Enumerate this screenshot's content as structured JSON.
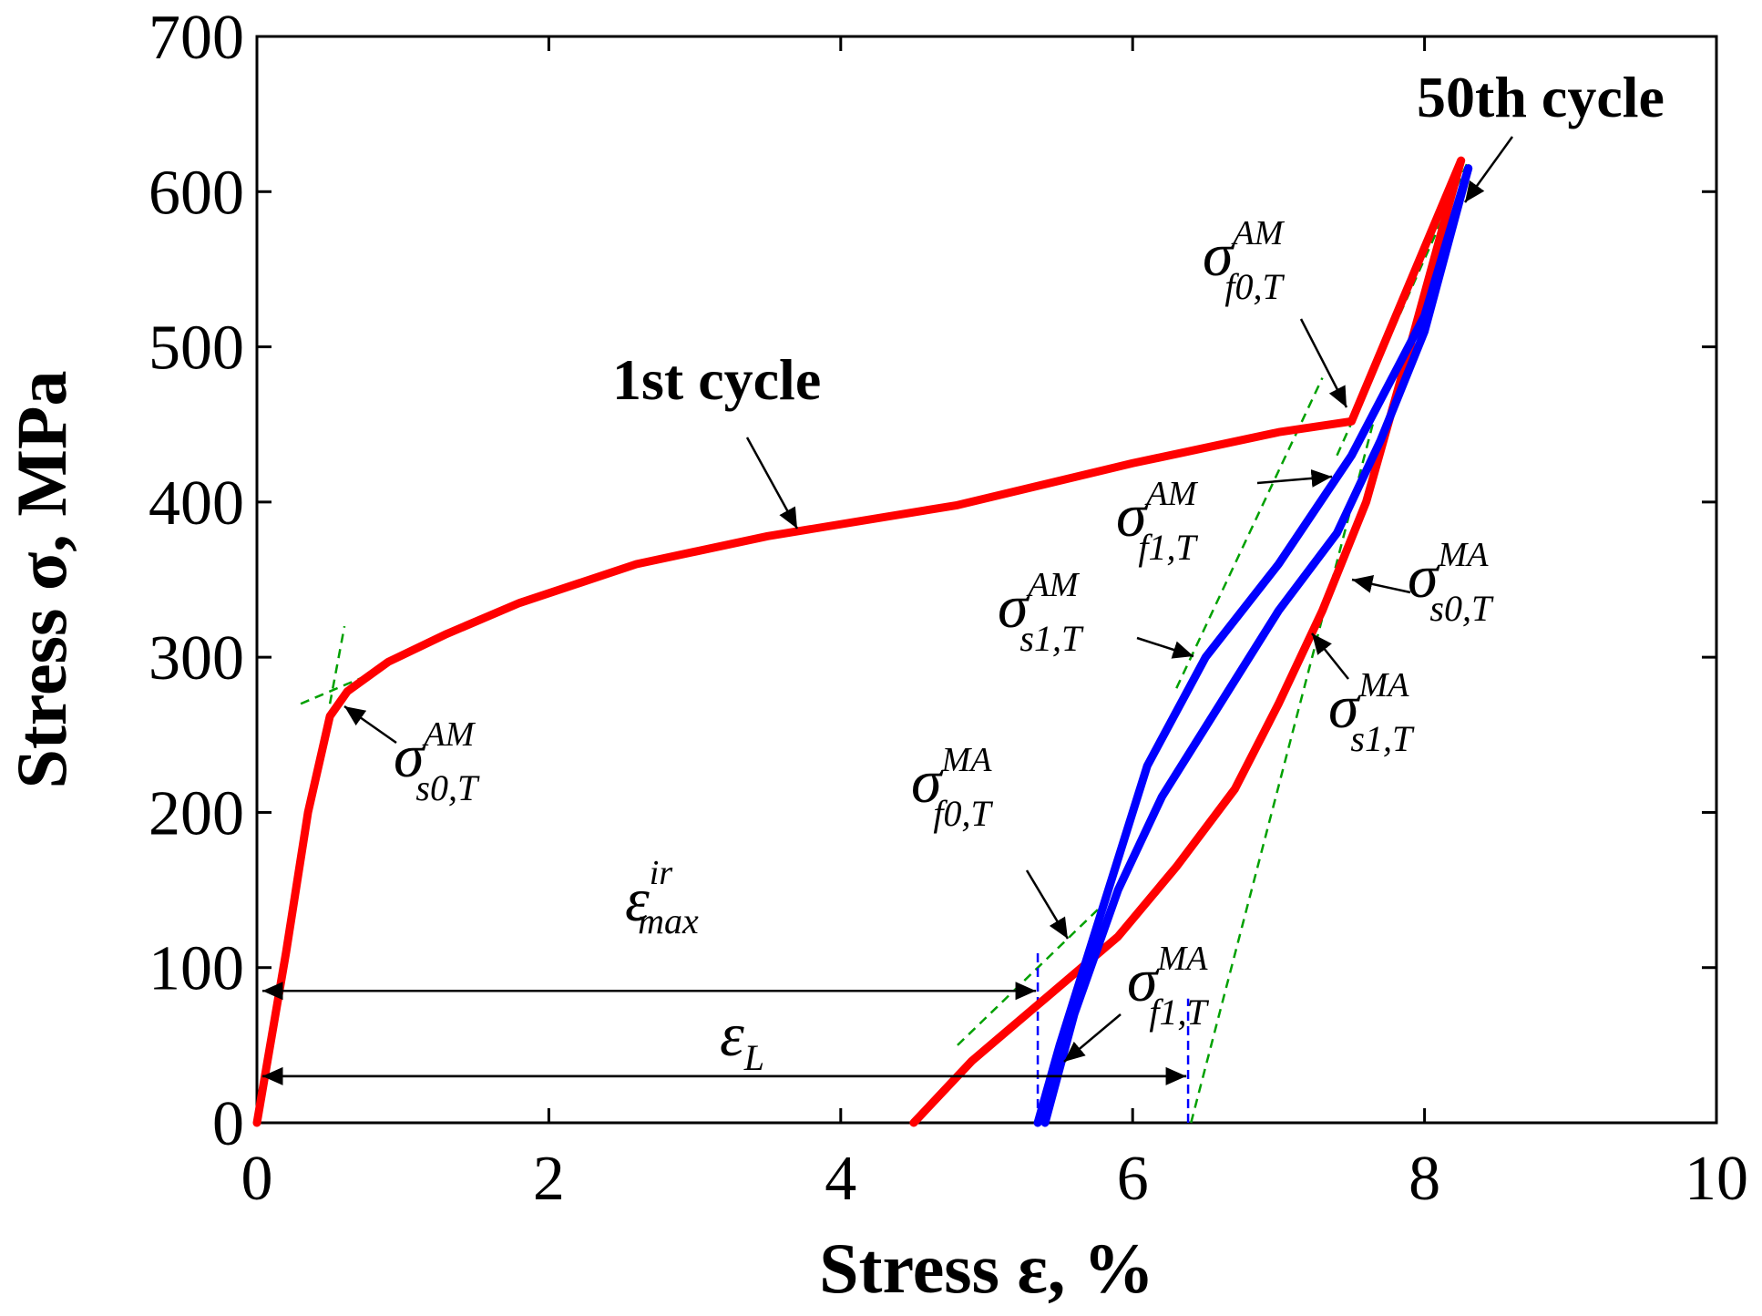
{
  "chart_data": {
    "type": "line",
    "xlabel": "Stress ε, %",
    "ylabel": "Stress σ, MPa",
    "xlim": [
      0,
      10
    ],
    "ylim": [
      0,
      700
    ],
    "x_ticks": [
      "0",
      "2",
      "4",
      "6",
      "8",
      "10"
    ],
    "y_ticks": [
      "0",
      "100",
      "200",
      "300",
      "400",
      "500",
      "600",
      "700"
    ],
    "grid": false,
    "colors": {
      "first_cycle": "#ff0000",
      "fiftieth_cycle": "#0000ff",
      "tangent": "#00a000",
      "strain_marker": "#0000ff"
    },
    "series": [
      {
        "label_text": "1st cycle",
        "color": "#ff0000",
        "loading": {
          "x": [
            0.0,
            0.2,
            0.35,
            0.5,
            0.62,
            0.9,
            1.3,
            1.8,
            2.6,
            3.5,
            4.8,
            6.0,
            7.0,
            7.5,
            8.25
          ],
          "y": [
            0,
            110,
            200,
            262,
            278,
            297,
            315,
            335,
            360,
            378,
            398,
            425,
            445,
            452,
            620
          ]
        },
        "unloading": {
          "x": [
            8.25,
            7.9,
            7.6,
            7.3,
            7.0,
            6.7,
            6.3,
            5.9,
            5.4,
            4.9,
            4.5
          ],
          "y": [
            620,
            500,
            400,
            330,
            270,
            215,
            165,
            120,
            80,
            40,
            0
          ]
        }
      },
      {
        "label_text": "50th cycle",
        "color": "#0000ff",
        "loading": {
          "x": [
            5.35,
            5.5,
            5.8,
            6.1,
            6.5,
            7.0,
            7.5,
            8.0,
            8.3
          ],
          "y": [
            0,
            50,
            140,
            230,
            300,
            360,
            430,
            520,
            615
          ]
        },
        "unloading": {
          "x": [
            8.3,
            8.0,
            7.7,
            7.4,
            7.0,
            6.6,
            6.2,
            5.9,
            5.6,
            5.4
          ],
          "y": [
            615,
            510,
            440,
            380,
            330,
            270,
            210,
            150,
            70,
            0
          ]
        }
      }
    ],
    "tangent_lines": [
      {
        "x": [
          0.3,
          0.85
        ],
        "y": [
          270,
          292
        ]
      },
      {
        "x": [
          0.5,
          0.6
        ],
        "y": [
          270,
          320
        ]
      },
      {
        "x": [
          7.4,
          8.3
        ],
        "y": [
          430,
          620
        ]
      },
      {
        "x": [
          6.4,
          7.7
        ],
        "y": [
          0,
          470
        ]
      },
      {
        "x": [
          4.8,
          5.9
        ],
        "y": [
          50,
          150
        ]
      },
      {
        "x": [
          6.3,
          7.3
        ],
        "y": [
          280,
          480
        ]
      }
    ],
    "strain_markers": [
      {
        "x": 5.35,
        "y": [
          0,
          110
        ]
      },
      {
        "x": 6.38,
        "y": [
          0,
          80
        ]
      }
    ],
    "dimension_arrows": [
      {
        "symbol": "ε",
        "sub": "max",
        "sup": "ir",
        "x_from": 0,
        "x_to": 5.35,
        "y": 85
      },
      {
        "symbol": "ε",
        "sub": "L",
        "sup": "",
        "x_from": 0,
        "x_to": 6.38,
        "y": 30
      }
    ],
    "annotations": [
      {
        "symbol": "σ",
        "sup": "AM",
        "sub": "s0,T"
      },
      {
        "symbol": "σ",
        "sup": "AM",
        "sub": "f0,T"
      },
      {
        "symbol": "σ",
        "sup": "AM",
        "sub": "f1,T"
      },
      {
        "symbol": "σ",
        "sup": "AM",
        "sub": "s1,T"
      },
      {
        "symbol": "σ",
        "sup": "MA",
        "sub": "s0,T"
      },
      {
        "symbol": "σ",
        "sup": "MA",
        "sub": "s1,T"
      },
      {
        "symbol": "σ",
        "sup": "MA",
        "sub": "f0,T"
      },
      {
        "symbol": "σ",
        "sup": "MA",
        "sub": "f1,T"
      }
    ]
  }
}
